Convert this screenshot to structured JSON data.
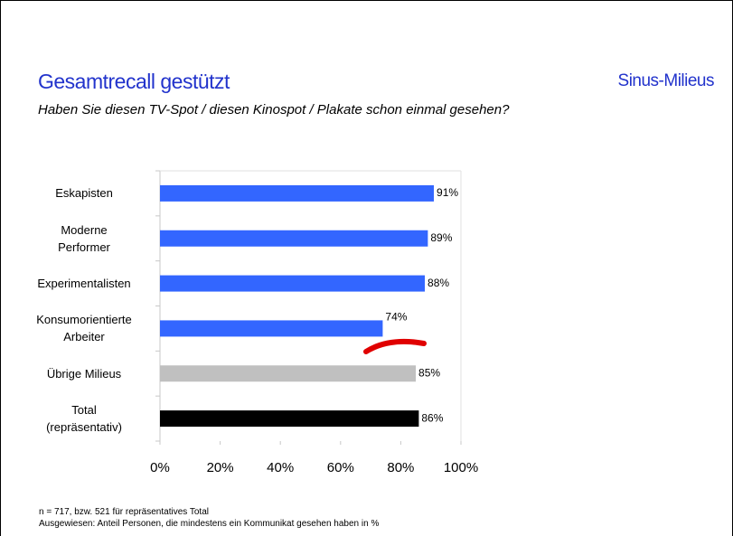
{
  "chart_data": {
    "type": "hbar",
    "title": "Gesamtrecall gestützt",
    "brand": "Sinus-Milieus",
    "subtitle": "Haben Sie diesen TV-Spot / diesen Kinospot / Plakate schon einmal gesehen?",
    "categories": [
      "Eskapisten",
      "Moderne\nPerformer",
      "Experimentalisten",
      "Konsumorientierte\nArbeiter",
      "Übrige Milieus",
      "Total\n(repräsentativ)"
    ],
    "values": [
      91,
      89,
      88,
      74,
      85,
      86
    ],
    "value_labels": [
      "91%",
      "89%",
      "88%",
      "74%",
      "85%",
      "86%"
    ],
    "colors": [
      "#3366ff",
      "#3366ff",
      "#3366ff",
      "#3366ff",
      "#c0c0c0",
      "#000000"
    ],
    "xlim": [
      0,
      100
    ],
    "xticks": [
      {
        "value": 0,
        "label": "0%"
      },
      {
        "value": 20,
        "label": "20%"
      },
      {
        "value": 40,
        "label": "40%"
      },
      {
        "value": 60,
        "label": "60%"
      },
      {
        "value": 80,
        "label": "80%"
      },
      {
        "value": 100,
        "label": "100%"
      }
    ],
    "footnotes": [
      "n = 717, bzw. 521 für repräsentatives Total",
      "Ausgewiesen: Anteil Personen, die mindestens ein Kommunikat gesehen haben in %"
    ]
  }
}
